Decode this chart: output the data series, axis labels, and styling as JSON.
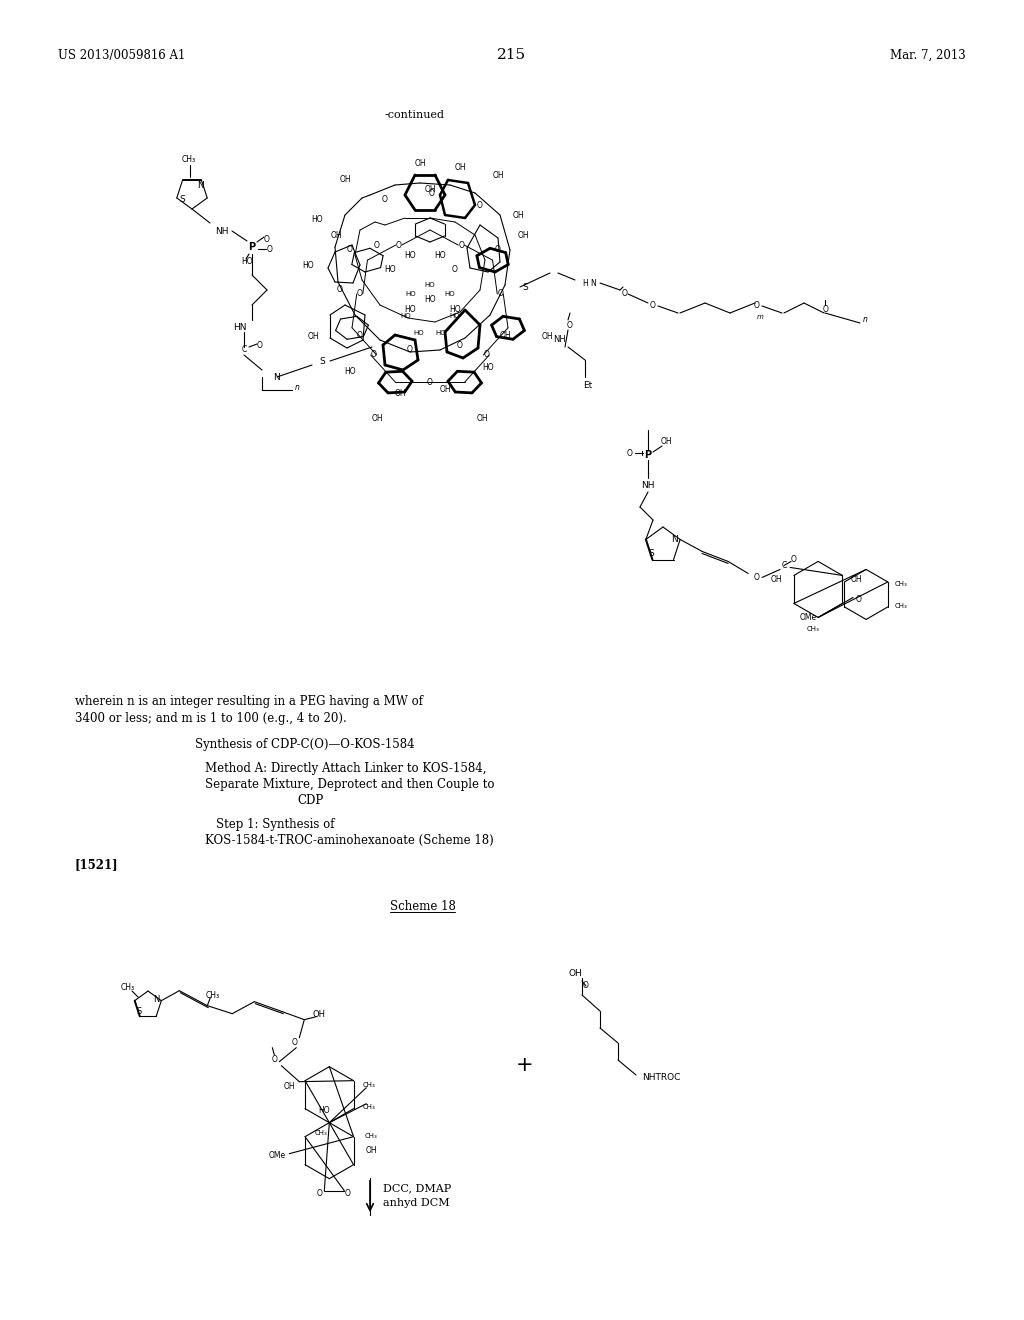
{
  "background_color": "#ffffff",
  "page_number": "215",
  "header_left": "US 2013/0059816 A1",
  "header_right": "Mar. 7, 2013",
  "continued_label": "-continued",
  "text1": "wherein n is an integer resulting in a PEG having a MW of",
  "text2": "3400 or less; and m is 1 to 100 (e.g., 4 to 20).",
  "text3": "Synthesis of CDP-C(O)—O-KOS-1584",
  "text4a": "Method A: Directly Attach Linker to KOS-1584,",
  "text4b": "Separate Mixture, Deprotect and then Couple to",
  "text4c": "CDP",
  "text5a": "Step 1: Synthesis of",
  "text5b": "KOS-1584-t-TROC-aminohexanoate (Scheme 18)",
  "text6": "[1521]",
  "scheme_label": "Scheme 18",
  "reagents1": "DCC, DMAP",
  "reagents2": "anhyd DCM"
}
